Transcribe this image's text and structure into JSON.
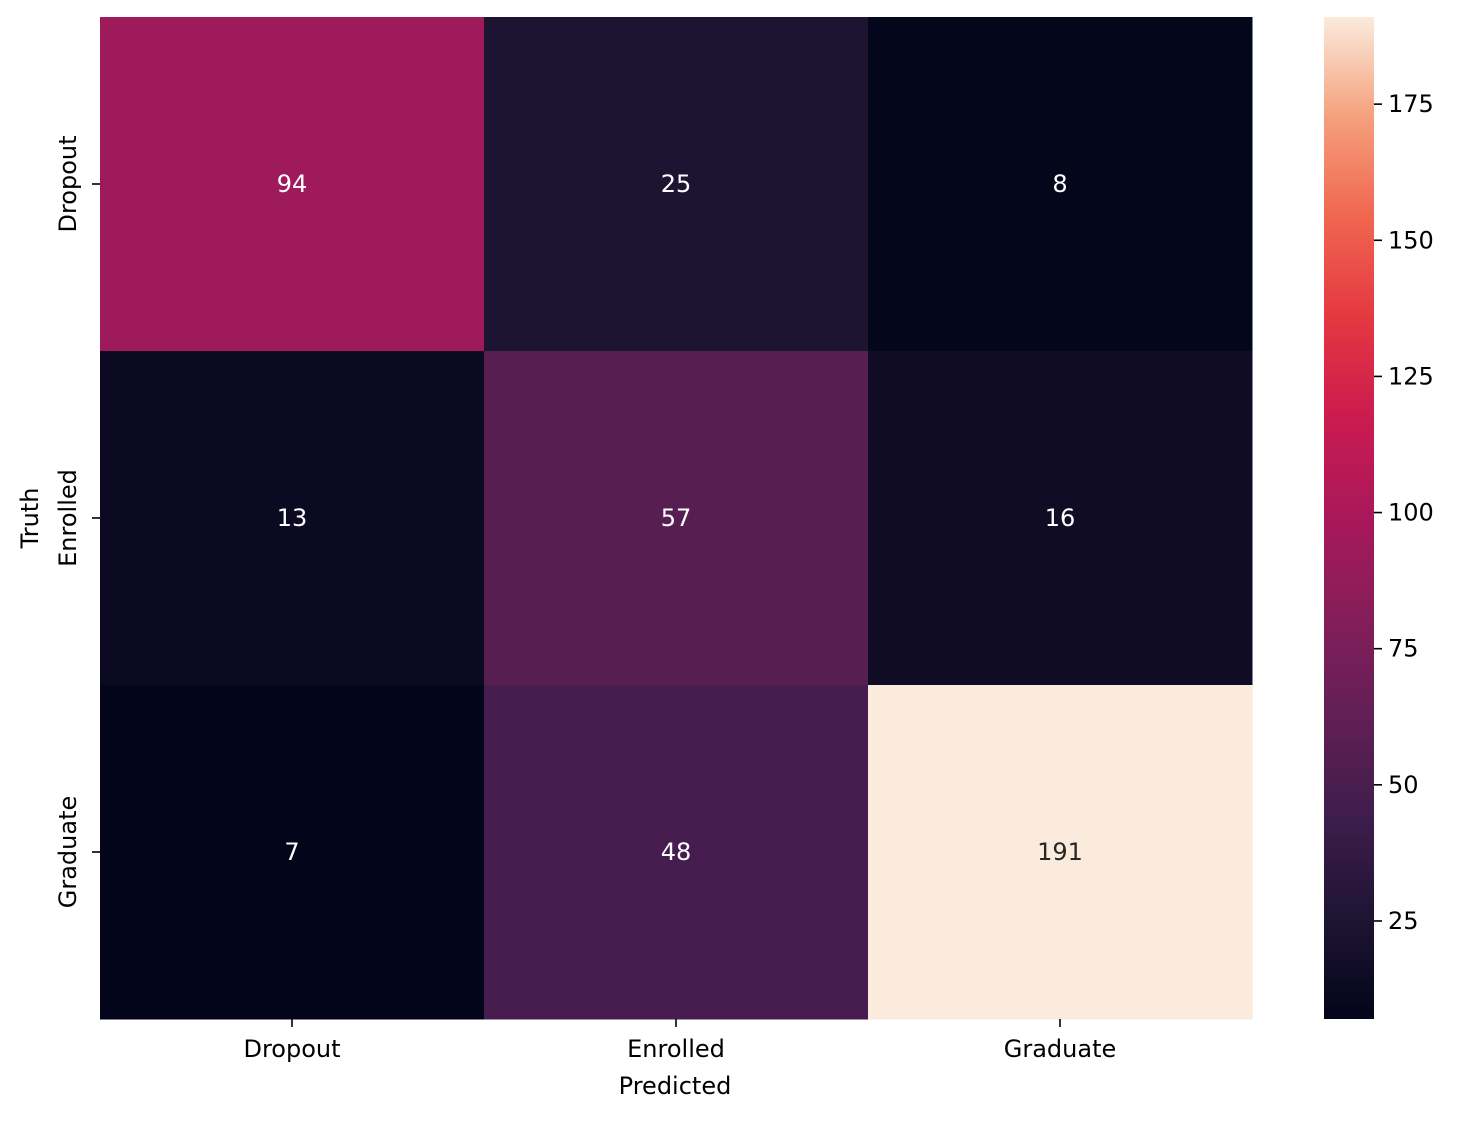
{
  "chart_data": {
    "type": "heatmap",
    "title": "",
    "xlabel": "Predicted",
    "ylabel": "Truth",
    "x_categories": [
      "Dropout",
      "Enrolled",
      "Graduate"
    ],
    "y_categories": [
      "Dropout",
      "Enrolled",
      "Graduate"
    ],
    "values": [
      [
        94,
        25,
        8
      ],
      [
        13,
        57,
        16
      ],
      [
        7,
        48,
        191
      ]
    ],
    "colormap": "rocket",
    "vmin": 7,
    "vmax": 191,
    "colorbar_ticks": [
      25,
      50,
      75,
      100,
      125,
      150,
      175
    ],
    "grid": false,
    "annotations": true
  }
}
